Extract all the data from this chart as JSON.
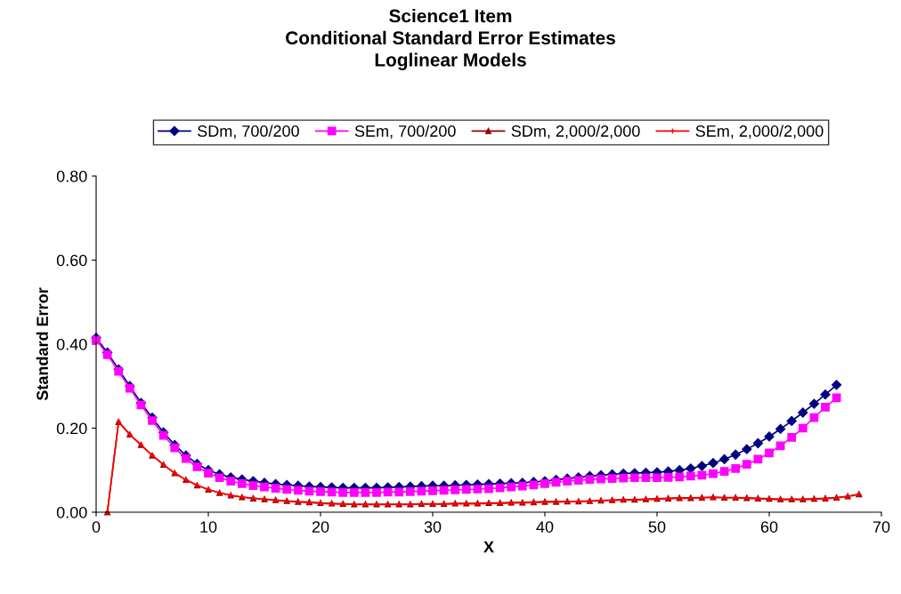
{
  "chart_data": {
    "type": "line",
    "title": "Science1 Item\nConditional Standard Error Estimates\nLoglinear Models",
    "xlabel": "X",
    "ylabel": "Standard Error",
    "xlim": [
      0,
      70
    ],
    "xticks": [
      0,
      10,
      20,
      30,
      40,
      50,
      60,
      70
    ],
    "ylim": [
      0,
      0.8
    ],
    "yticks": [
      {
        "value": 0,
        "label": "0.00"
      },
      {
        "value": 0.2,
        "label": "0.20"
      },
      {
        "value": 0.4,
        "label": "0.40"
      },
      {
        "value": 0.6,
        "label": "0.60"
      },
      {
        "value": 0.8,
        "label": "0.80"
      }
    ],
    "grid": false,
    "legend": "top",
    "line_style": "solid",
    "series": [
      {
        "name": "SDm, 700/200",
        "color": "#000080",
        "marker": "diamond",
        "x": [
          0,
          1,
          2,
          3,
          4,
          5,
          6,
          7,
          8,
          9,
          10,
          11,
          12,
          13,
          14,
          15,
          16,
          17,
          18,
          19,
          20,
          21,
          22,
          23,
          24,
          25,
          26,
          27,
          28,
          29,
          30,
          31,
          32,
          33,
          34,
          35,
          36,
          37,
          38,
          39,
          40,
          41,
          42,
          43,
          44,
          45,
          46,
          47,
          48,
          49,
          50,
          51,
          52,
          53,
          54,
          55,
          56,
          57,
          58,
          59,
          60,
          61,
          62,
          63,
          64,
          65,
          66
        ],
        "values": [
          0.415,
          0.38,
          0.34,
          0.3,
          0.26,
          0.225,
          0.19,
          0.16,
          0.135,
          0.115,
          0.1,
          0.09,
          0.083,
          0.078,
          0.074,
          0.07,
          0.067,
          0.065,
          0.063,
          0.061,
          0.06,
          0.059,
          0.058,
          0.058,
          0.058,
          0.058,
          0.059,
          0.06,
          0.061,
          0.062,
          0.063,
          0.063,
          0.064,
          0.065,
          0.066,
          0.067,
          0.068,
          0.069,
          0.07,
          0.072,
          0.074,
          0.077,
          0.08,
          0.083,
          0.086,
          0.088,
          0.09,
          0.092,
          0.093,
          0.094,
          0.095,
          0.097,
          0.1,
          0.104,
          0.11,
          0.117,
          0.126,
          0.137,
          0.15,
          0.164,
          0.18,
          0.198,
          0.217,
          0.237,
          0.258,
          0.28,
          0.303
        ]
      },
      {
        "name": "SEm, 700/200",
        "color": "#ff00ff",
        "marker": "square",
        "x": [
          0,
          1,
          2,
          3,
          4,
          5,
          6,
          7,
          8,
          9,
          10,
          11,
          12,
          13,
          14,
          15,
          16,
          17,
          18,
          19,
          20,
          21,
          22,
          23,
          24,
          25,
          26,
          27,
          28,
          29,
          30,
          31,
          32,
          33,
          34,
          35,
          36,
          37,
          38,
          39,
          40,
          41,
          42,
          43,
          44,
          45,
          46,
          47,
          48,
          49,
          50,
          51,
          52,
          53,
          54,
          55,
          56,
          57,
          58,
          59,
          60,
          61,
          62,
          63,
          64,
          65,
          66
        ],
        "values": [
          0.41,
          0.375,
          0.335,
          0.295,
          0.255,
          0.218,
          0.183,
          0.153,
          0.128,
          0.108,
          0.093,
          0.082,
          0.074,
          0.068,
          0.063,
          0.06,
          0.057,
          0.054,
          0.052,
          0.05,
          0.049,
          0.048,
          0.047,
          0.047,
          0.047,
          0.047,
          0.048,
          0.048,
          0.049,
          0.05,
          0.051,
          0.052,
          0.053,
          0.054,
          0.055,
          0.056,
          0.058,
          0.06,
          0.062,
          0.065,
          0.068,
          0.071,
          0.074,
          0.076,
          0.078,
          0.079,
          0.08,
          0.081,
          0.082,
          0.082,
          0.082,
          0.083,
          0.084,
          0.086,
          0.088,
          0.092,
          0.097,
          0.104,
          0.114,
          0.126,
          0.141,
          0.158,
          0.178,
          0.2,
          0.225,
          0.25,
          0.272
        ]
      },
      {
        "name": "SDm, 2,000/2,000",
        "color": "#990000",
        "marker": "triangle",
        "x": [
          1,
          2,
          3,
          4,
          5,
          6,
          7,
          8,
          9,
          10,
          11,
          12,
          13,
          14,
          15,
          16,
          17,
          18,
          19,
          20,
          21,
          22,
          23,
          24,
          25,
          26,
          27,
          28,
          29,
          30,
          31,
          32,
          33,
          34,
          35,
          36,
          37,
          38,
          39,
          40,
          41,
          42,
          43,
          44,
          45,
          46,
          47,
          48,
          49,
          50,
          51,
          52,
          53,
          54,
          55,
          56,
          57,
          58,
          59,
          60,
          61,
          62,
          63,
          64,
          65,
          66,
          67,
          68
        ],
        "values": [
          0,
          0.215,
          0.185,
          0.16,
          0.135,
          0.113,
          0.093,
          0.077,
          0.064,
          0.054,
          0.046,
          0.04,
          0.036,
          0.033,
          0.031,
          0.029,
          0.027,
          0.025,
          0.024,
          0.022,
          0.021,
          0.02,
          0.019,
          0.019,
          0.019,
          0.019,
          0.019,
          0.019,
          0.02,
          0.02,
          0.02,
          0.021,
          0.021,
          0.021,
          0.022,
          0.022,
          0.023,
          0.023,
          0.024,
          0.025,
          0.025,
          0.026,
          0.026,
          0.027,
          0.028,
          0.029,
          0.03,
          0.03,
          0.031,
          0.032,
          0.033,
          0.034,
          0.034,
          0.035,
          0.036,
          0.035,
          0.035,
          0.034,
          0.033,
          0.032,
          0.031,
          0.031,
          0.031,
          0.032,
          0.033,
          0.035,
          0.038,
          0.043
        ]
      },
      {
        "name": "SEm, 2,000/2,000",
        "color": "#ff0000",
        "marker": "cross",
        "x": [
          1,
          2,
          3,
          4,
          5,
          6,
          7,
          8,
          9,
          10,
          11,
          12,
          13,
          14,
          15,
          16,
          17,
          18,
          19,
          20,
          21,
          22,
          23,
          24,
          25,
          26,
          27,
          28,
          29,
          30,
          31,
          32,
          33,
          34,
          35,
          36,
          37,
          38,
          39,
          40,
          41,
          42,
          43,
          44,
          45,
          46,
          47,
          48,
          49,
          50,
          51,
          52,
          53,
          54,
          55,
          56,
          57,
          58,
          59,
          60,
          61,
          62,
          63,
          64,
          65,
          66,
          67,
          68
        ],
        "values": [
          0,
          0.215,
          0.185,
          0.16,
          0.135,
          0.113,
          0.093,
          0.077,
          0.064,
          0.054,
          0.046,
          0.04,
          0.036,
          0.033,
          0.031,
          0.028,
          0.026,
          0.024,
          0.023,
          0.021,
          0.02,
          0.019,
          0.018,
          0.018,
          0.018,
          0.018,
          0.018,
          0.018,
          0.019,
          0.019,
          0.019,
          0.02,
          0.02,
          0.02,
          0.021,
          0.021,
          0.022,
          0.022,
          0.023,
          0.024,
          0.024,
          0.025,
          0.025,
          0.026,
          0.027,
          0.028,
          0.029,
          0.029,
          0.03,
          0.031,
          0.032,
          0.033,
          0.033,
          0.034,
          0.035,
          0.034,
          0.034,
          0.033,
          0.032,
          0.031,
          0.03,
          0.03,
          0.03,
          0.031,
          0.032,
          0.034,
          0.037,
          0.042
        ]
      }
    ]
  }
}
